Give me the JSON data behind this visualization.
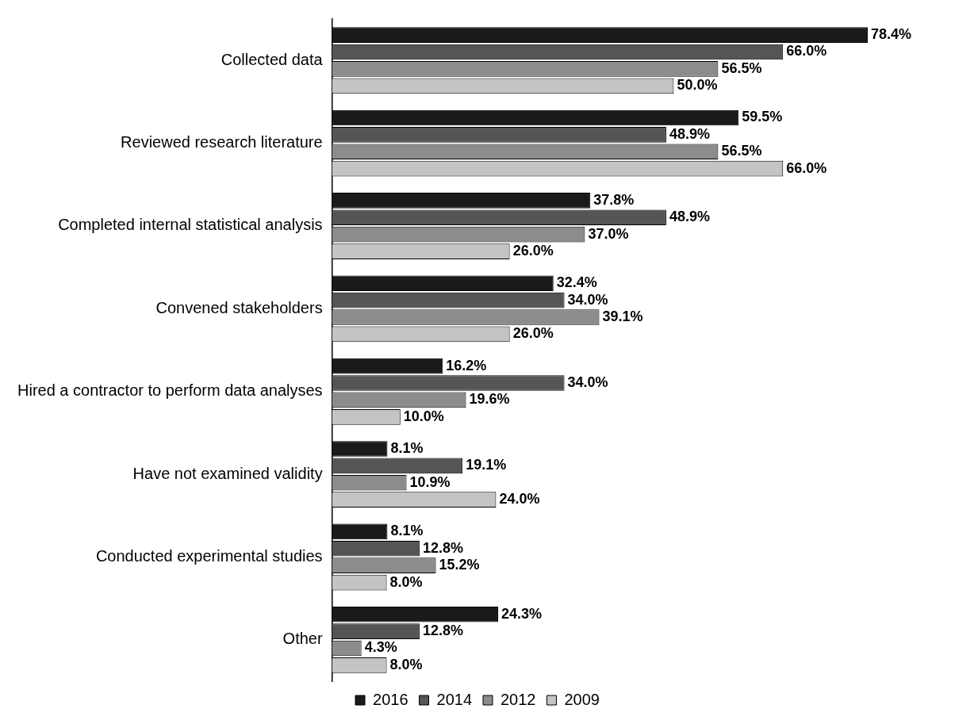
{
  "chart_data": {
    "type": "bar",
    "orientation": "horizontal",
    "legend": "bottom",
    "categories": [
      "Collected data",
      "Reviewed research literature",
      "Completed internal statistical analysis",
      "Convened stakeholders",
      "Hired a contractor to perform data analyses",
      "Have not examined validity",
      "Conducted experimental studies",
      "Other"
    ],
    "series": [
      {
        "name": "2016",
        "color": "#1a1a1a",
        "values": [
          78.4,
          59.5,
          37.8,
          32.4,
          16.2,
          8.1,
          8.1,
          24.3
        ],
        "value_labels": [
          "78.4%",
          "59.5%",
          "37.8%",
          "32.4%",
          "16.2%",
          "8.1%",
          "8.1%",
          "24.3%"
        ]
      },
      {
        "name": "2014",
        "color": "#555555",
        "values": [
          66.0,
          48.9,
          48.9,
          34.0,
          34.0,
          19.1,
          12.8,
          12.8
        ],
        "value_labels": [
          "66.0%",
          "48.9%",
          "48.9%",
          "34.0%",
          "34.0%",
          "19.1%",
          "12.8%",
          "12.8%"
        ]
      },
      {
        "name": "2012",
        "color": "#8c8c8c",
        "values": [
          56.5,
          56.5,
          37.0,
          39.1,
          19.6,
          10.9,
          15.2,
          4.3
        ],
        "value_labels": [
          "56.5%",
          "56.5%",
          "37.0%",
          "39.1%",
          "19.6%",
          "10.9%",
          "15.2%",
          "4.3%"
        ]
      },
      {
        "name": "2009",
        "color": "#c4c4c4",
        "values": [
          50.0,
          66.0,
          26.0,
          26.0,
          10.0,
          24.0,
          8.0,
          8.0
        ],
        "value_labels": [
          "50.0%",
          "66.0%",
          "26.0%",
          "26.0%",
          "10.0%",
          "24.0%",
          "8.0%",
          "8.0%"
        ]
      }
    ]
  }
}
